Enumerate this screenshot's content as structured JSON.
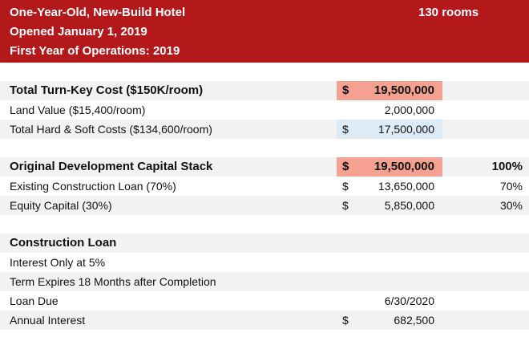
{
  "header": {
    "lines": [
      "One-Year-Old, New-Build Hotel",
      "Opened January 1, 2019",
      "First Year of Operations: 2019"
    ],
    "rooms": "130 rooms"
  },
  "sections": [
    {
      "rows": [
        {
          "label": "Total Turn-Key Cost ($150K/room)",
          "currency": "$",
          "amount": "19,500,000",
          "bold": true,
          "fill": "#f4a191"
        },
        {
          "label": "Land Value ($15,400/room)",
          "amount": "2,000,000"
        },
        {
          "label": "Total Hard & Soft Costs ($134,600/room)",
          "currency": "$",
          "amount": "17,500,000",
          "fill": "#ddebf7"
        }
      ]
    },
    {
      "rows": [
        {
          "label": "Original Development Capital Stack",
          "currency": "$",
          "amount": "19,500,000",
          "percent": "100%",
          "bold": true,
          "fill": "#f4a191"
        },
        {
          "label": "Existing Construction Loan (70%)",
          "currency": "$",
          "amount": "13,650,000",
          "percent": "70%"
        },
        {
          "label": "Equity Capital (30%)",
          "currency": "$",
          "amount": "5,850,000",
          "percent": "30%"
        }
      ]
    },
    {
      "rows": [
        {
          "label": "Construction Loan",
          "bold": true
        },
        {
          "label": "Interest Only at 5%"
        },
        {
          "label": "Term Expires 18 Months after Completion"
        },
        {
          "label": "Loan Due",
          "amount": "6/30/2020"
        },
        {
          "label": "Annual Interest",
          "currency": "$",
          "amount": "682,500"
        }
      ]
    }
  ]
}
